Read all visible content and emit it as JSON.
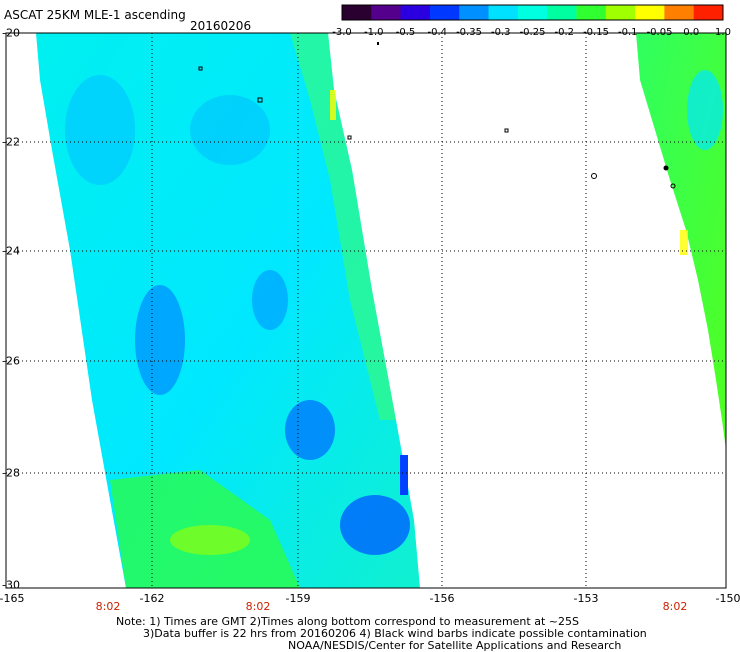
{
  "header": {
    "title": "ASCAT 25KM MLE-1 ascending",
    "date": "20160206"
  },
  "colorbar": {
    "labels": [
      "-3.0",
      "-1.0",
      "-0.5",
      "-0.4",
      "-0.35",
      "-0.3",
      "-0.25",
      "-0.2",
      "-0.15",
      "-0.1",
      "-0.05",
      "0.0",
      "1.0"
    ],
    "colors": [
      "#2a0030",
      "#55008c",
      "#2b00e0",
      "#0038ff",
      "#0090ff",
      "#00e0ff",
      "#00ffe0",
      "#00ffa0",
      "#30ff30",
      "#a0ff00",
      "#ffff00",
      "#ff8000",
      "#ff2000"
    ]
  },
  "axes": {
    "y_labels": [
      "-20",
      "-22",
      "-24",
      "-26",
      "-28",
      "-30"
    ],
    "x_labels": [
      "-165",
      "-162",
      "-159",
      "-156",
      "-153",
      "-150"
    ]
  },
  "time_labels": [
    "8:02",
    "8:02",
    "8:02"
  ],
  "notes": {
    "line1": "Note: 1) Times are GMT 2)Times along bottom correspond to measurement at ~25S",
    "line2": "3)Data buffer is 22 hrs from 20160206 4) Black wind barbs indicate possible contamination",
    "line3": "NOAA/NESDIS/Center for Satellite Applications and Research"
  }
}
